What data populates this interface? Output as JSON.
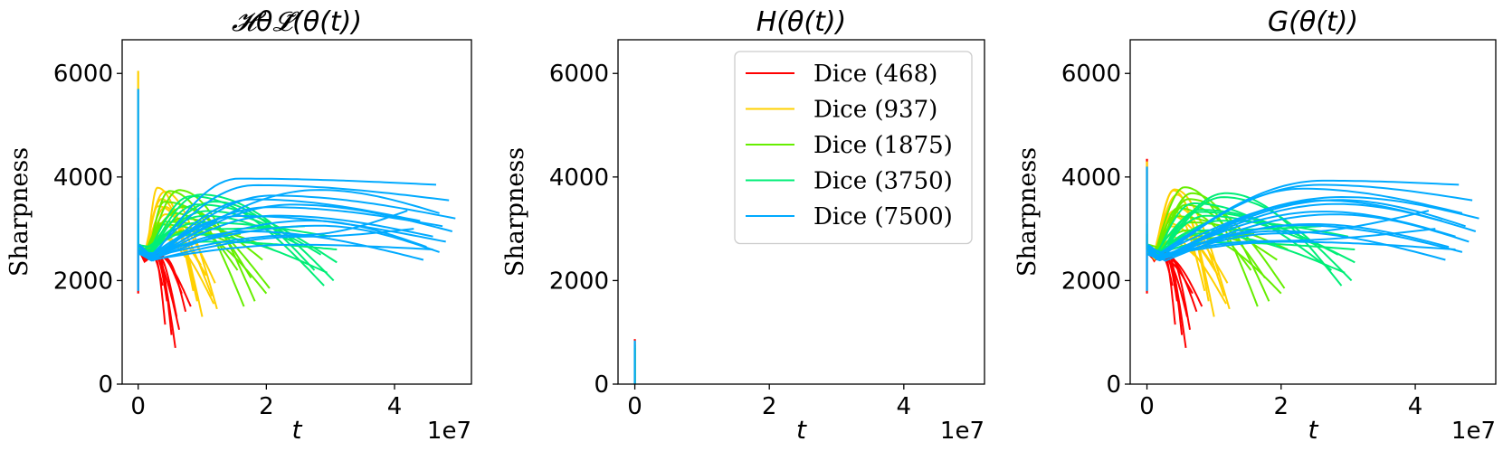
{
  "chart_data": [
    {
      "type": "line",
      "title": "𝓗θ𝓛̃(θ(t))",
      "xlabel": "t",
      "ylabel": "Sharpness",
      "x_offset_label": "1e7",
      "xlim": [
        -0.25,
        5.2
      ],
      "ylim": [
        0,
        6650
      ],
      "xticks": [
        0,
        2,
        4
      ],
      "xtick_labels": [
        "0",
        "2",
        "4"
      ],
      "yticks": [
        0,
        2000,
        4000,
        6000
      ],
      "ytick_labels": [
        "0",
        "2000",
        "4000",
        "6000"
      ],
      "legend": null,
      "series_groups": [
        {
          "name": "Dice (468)",
          "color": "#ff0000",
          "spike": [
            0.0,
            1750,
            3600
          ],
          "peak": [
            0.3,
            2500
          ],
          "min": [
            0.1,
            2450
          ],
          "ends": [
            [
              5.8,
              700
            ],
            [
              4.2,
              1150
            ],
            [
              6.4,
              1050
            ],
            [
              5.2,
              950
            ],
            [
              7.4,
              1400
            ],
            [
              6.0,
              1300
            ],
            [
              4.5,
              1600
            ],
            [
              8.2,
              1500
            ],
            [
              3.8,
              1900
            ],
            [
              6.8,
              1750
            ]
          ]
        },
        {
          "name": "Dice (937)",
          "color": "#ffd000",
          "spike": [
            0.0,
            2600,
            6050
          ],
          "peak": [
            0.35,
            3800
          ],
          "min": [
            0.12,
            2500
          ],
          "ends": [
            [
              10.0,
              1300
            ],
            [
              12.3,
              1450
            ],
            [
              9.2,
              1600
            ],
            [
              11.5,
              1700
            ],
            [
              8.6,
              1800
            ],
            [
              12.0,
              1950
            ],
            [
              10.6,
              2100
            ],
            [
              9.8,
              2300
            ],
            [
              11.8,
              1550
            ],
            [
              7.4,
              2450
            ]
          ]
        },
        {
          "name": "Dice (1875)",
          "color": "#66ee00",
          "spike": [
            0.0,
            2600,
            2900
          ],
          "peak": [
            0.55,
            3800
          ],
          "min": [
            0.15,
            2550
          ],
          "ends": [
            [
              16.5,
              1500
            ],
            [
              18.2,
              1600
            ],
            [
              20.5,
              1850
            ],
            [
              17.6,
              2050
            ],
            [
              15.5,
              2200
            ],
            [
              19.4,
              2400
            ],
            [
              21.0,
              2600
            ],
            [
              14.0,
              2750
            ],
            [
              20.0,
              1750
            ],
            [
              16.0,
              2900
            ]
          ]
        },
        {
          "name": "Dice (3750)",
          "color": "#00ee77",
          "spike": [
            0.0,
            2700,
            3100
          ],
          "peak": [
            0.9,
            3700
          ],
          "min": [
            0.18,
            2550
          ],
          "ends": [
            [
              29.0,
              1900
            ],
            [
              30.5,
              2000
            ],
            [
              27.5,
              2200
            ],
            [
              31.0,
              2350
            ],
            [
              28.5,
              2500
            ],
            [
              25.0,
              2700
            ],
            [
              30.0,
              2850
            ],
            [
              26.0,
              3050
            ],
            [
              29.5,
              2150
            ],
            [
              31.0,
              2600
            ]
          ]
        },
        {
          "name": "Dice (7500)",
          "color": "#00aaff",
          "spike": [
            0.0,
            1800,
            5700
          ],
          "peak": [
            2.2,
            3900
          ],
          "min": [
            0.2,
            2450
          ],
          "ends": [
            [
              46.5,
              3850
            ],
            [
              48.5,
              3550
            ],
            [
              47.0,
              3300
            ],
            [
              49.5,
              3200
            ],
            [
              44.0,
              3150
            ],
            [
              47.5,
              3050
            ],
            [
              49.0,
              2950
            ],
            [
              46.0,
              2850
            ],
            [
              48.0,
              2750
            ],
            [
              45.0,
              2650
            ],
            [
              47.0,
              2550
            ],
            [
              44.5,
              2400
            ],
            [
              42.0,
              3350
            ],
            [
              43.0,
              3000
            ],
            [
              46.0,
              2600
            ]
          ]
        }
      ]
    },
    {
      "type": "line",
      "title": "H(θ(t))",
      "xlabel": "t",
      "ylabel": "Sharpness",
      "x_offset_label": "1e7",
      "xlim": [
        -0.25,
        5.2
      ],
      "ylim": [
        0,
        6650
      ],
      "xticks": [
        0,
        2,
        4
      ],
      "xtick_labels": [
        "0",
        "2",
        "4"
      ],
      "yticks": [
        0,
        2000,
        4000,
        6000
      ],
      "ytick_labels": [
        "0",
        "2000",
        "4000",
        "6000"
      ],
      "legend": {
        "position": "upper right",
        "entries": [
          {
            "label": "Dice (468)",
            "color": "#ff0000"
          },
          {
            "label": "Dice (937)",
            "color": "#ffd000"
          },
          {
            "label": "Dice (1875)",
            "color": "#66ee00"
          },
          {
            "label": "Dice (3750)",
            "color": "#00ee77"
          },
          {
            "label": "Dice (7500)",
            "color": "#00aaff"
          }
        ]
      },
      "spikes": [
        {
          "name": "Dice (468)",
          "color": "#ff0000",
          "x": 0.0,
          "y": [
            0,
            870
          ]
        },
        {
          "name": "Dice (937)",
          "color": "#ffd000",
          "x": 0.0,
          "y": [
            0,
            820
          ]
        },
        {
          "name": "Dice (1875)",
          "color": "#66ee00",
          "x": 0.0,
          "y": [
            0,
            700
          ]
        },
        {
          "name": "Dice (3750)",
          "color": "#00ee77",
          "x": 0.0,
          "y": [
            0,
            760
          ]
        },
        {
          "name": "Dice (7500)",
          "color": "#00aaff",
          "x": 0.0,
          "y": [
            0,
            840
          ]
        }
      ]
    },
    {
      "type": "line",
      "title": "G(θ(t))",
      "xlabel": "t",
      "ylabel": "Sharpness",
      "x_offset_label": "1e7",
      "xlim": [
        -0.25,
        5.2
      ],
      "ylim": [
        0,
        6650
      ],
      "xticks": [
        0,
        2,
        4
      ],
      "xtick_labels": [
        "0",
        "2",
        "4"
      ],
      "yticks": [
        0,
        2000,
        4000,
        6000
      ],
      "ytick_labels": [
        "0",
        "2000",
        "4000",
        "6000"
      ],
      "legend": null,
      "series_groups": [
        {
          "name": "Dice (468)",
          "color": "#ff0000",
          "spike": [
            0.0,
            1750,
            4350
          ],
          "peak": [
            0.3,
            2500
          ],
          "min": [
            0.1,
            2450
          ],
          "ends": [
            [
              5.8,
              700
            ],
            [
              4.2,
              1150
            ],
            [
              6.4,
              1050
            ],
            [
              5.2,
              950
            ],
            [
              7.4,
              1400
            ],
            [
              6.0,
              1300
            ],
            [
              4.5,
              1600
            ],
            [
              8.2,
              1500
            ],
            [
              3.8,
              1900
            ],
            [
              6.8,
              1750
            ]
          ]
        },
        {
          "name": "Dice (937)",
          "color": "#ffd000",
          "spike": [
            0.0,
            2600,
            4300
          ],
          "peak": [
            0.35,
            3800
          ],
          "min": [
            0.12,
            2500
          ],
          "ends": [
            [
              10.0,
              1300
            ],
            [
              12.3,
              1450
            ],
            [
              9.2,
              1600
            ],
            [
              11.5,
              1700
            ],
            [
              8.6,
              1800
            ],
            [
              12.0,
              1950
            ],
            [
              10.6,
              2100
            ],
            [
              9.8,
              2300
            ],
            [
              11.8,
              1550
            ],
            [
              7.4,
              2450
            ]
          ]
        },
        {
          "name": "Dice (1875)",
          "color": "#66ee00",
          "spike": [
            0.0,
            2600,
            2900
          ],
          "peak": [
            0.55,
            3800
          ],
          "min": [
            0.15,
            2550
          ],
          "ends": [
            [
              16.5,
              1500
            ],
            [
              18.2,
              1600
            ],
            [
              20.5,
              1850
            ],
            [
              17.6,
              2050
            ],
            [
              15.5,
              2200
            ],
            [
              19.4,
              2400
            ],
            [
              21.0,
              2600
            ],
            [
              14.0,
              2750
            ],
            [
              20.0,
              1750
            ],
            [
              16.0,
              2900
            ]
          ]
        },
        {
          "name": "Dice (3750)",
          "color": "#00ee77",
          "spike": [
            0.0,
            2700,
            3100
          ],
          "peak": [
            0.9,
            3700
          ],
          "min": [
            0.18,
            2550
          ],
          "ends": [
            [
              29.0,
              1900
            ],
            [
              30.5,
              2000
            ],
            [
              27.5,
              2200
            ],
            [
              31.0,
              2350
            ],
            [
              28.5,
              2500
            ],
            [
              25.0,
              2700
            ],
            [
              30.0,
              2850
            ],
            [
              26.0,
              3050
            ],
            [
              29.5,
              2150
            ],
            [
              31.0,
              2600
            ]
          ]
        },
        {
          "name": "Dice (7500)",
          "color": "#00aaff",
          "spike": [
            0.0,
            1800,
            4200
          ],
          "peak": [
            2.2,
            3900
          ],
          "min": [
            0.2,
            2450
          ],
          "ends": [
            [
              46.5,
              3850
            ],
            [
              48.5,
              3550
            ],
            [
              47.0,
              3300
            ],
            [
              49.5,
              3200
            ],
            [
              44.0,
              3150
            ],
            [
              47.5,
              3050
            ],
            [
              49.0,
              2950
            ],
            [
              46.0,
              2850
            ],
            [
              48.0,
              2750
            ],
            [
              45.0,
              2650
            ],
            [
              47.0,
              2550
            ],
            [
              44.5,
              2400
            ],
            [
              42.0,
              3350
            ],
            [
              43.0,
              3000
            ],
            [
              46.0,
              2600
            ]
          ]
        }
      ]
    }
  ]
}
